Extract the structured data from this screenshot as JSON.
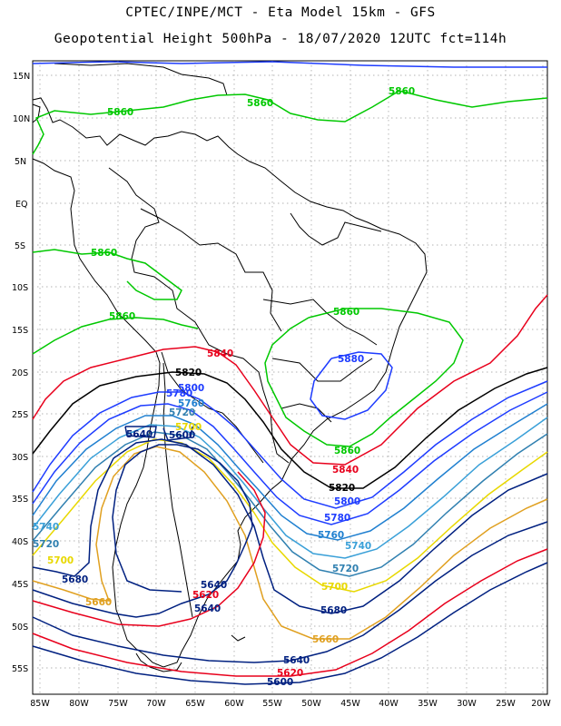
{
  "header": {
    "line1": "CPTEC/INPE/MCT -  Eta Model 15km - GFS",
    "line2": "Geopotential Height 500hPa - 18/07/2020 12UTC fct=114h"
  },
  "axes": {
    "lat_labels": [
      "15N",
      "10N",
      "5N",
      "EQ",
      "5S",
      "10S",
      "15S",
      "20S",
      "25S",
      "30S",
      "35S",
      "40S",
      "45S",
      "50S",
      "55S"
    ],
    "lon_labels": [
      "85W",
      "80W",
      "75W",
      "70W",
      "65W",
      "60W",
      "55W",
      "50W",
      "45W",
      "40W",
      "35W",
      "30W",
      "25W",
      "20W"
    ]
  },
  "contour_labels": [
    {
      "text": "5860",
      "color": "#00c800"
    },
    {
      "text": "5860",
      "color": "#00c800"
    },
    {
      "text": "5860",
      "color": "#00c800"
    },
    {
      "text": "5860",
      "color": "#00c800"
    },
    {
      "text": "5860",
      "color": "#00c800"
    },
    {
      "text": "5860",
      "color": "#00c800"
    },
    {
      "text": "5860",
      "color": "#00c800"
    },
    {
      "text": "5880",
      "color": "#1e3cff"
    },
    {
      "text": "5840",
      "color": "#e8001c"
    },
    {
      "text": "5840",
      "color": "#e8001c"
    },
    {
      "text": "5820",
      "color": "#000000"
    },
    {
      "text": "5820",
      "color": "#000000"
    },
    {
      "text": "5800",
      "color": "#1e3cff"
    },
    {
      "text": "5800",
      "color": "#1e3cff"
    },
    {
      "text": "5780",
      "color": "#1e3cff"
    },
    {
      "text": "5780",
      "color": "#1e3cff"
    },
    {
      "text": "5760",
      "color": "#2080d0"
    },
    {
      "text": "5760",
      "color": "#2080d0"
    },
    {
      "text": "5740",
      "color": "#3aa0d8"
    },
    {
      "text": "5740",
      "color": "#3aa0d8"
    },
    {
      "text": "5720",
      "color": "#3080b0"
    },
    {
      "text": "5720",
      "color": "#3080b0"
    },
    {
      "text": "5720",
      "color": "#3080b0"
    },
    {
      "text": "5700",
      "color": "#e8d800"
    },
    {
      "text": "5700",
      "color": "#e8d800"
    },
    {
      "text": "5700",
      "color": "#e8d800"
    },
    {
      "text": "5680",
      "color": "#002080"
    },
    {
      "text": "5680",
      "color": "#002080"
    },
    {
      "text": "5660",
      "color": "#e0a020"
    },
    {
      "text": "5660",
      "color": "#e0a020"
    },
    {
      "text": "5640",
      "color": "#002080"
    },
    {
      "text": "5640",
      "color": "#002080"
    },
    {
      "text": "5640",
      "color": "#002080"
    },
    {
      "text": "5640",
      "color": "#002080"
    },
    {
      "text": "5620",
      "color": "#e8001c"
    },
    {
      "text": "5620",
      "color": "#e8001c"
    },
    {
      "text": "5600",
      "color": "#002080"
    },
    {
      "text": "5600",
      "color": "#002080"
    }
  ]
}
